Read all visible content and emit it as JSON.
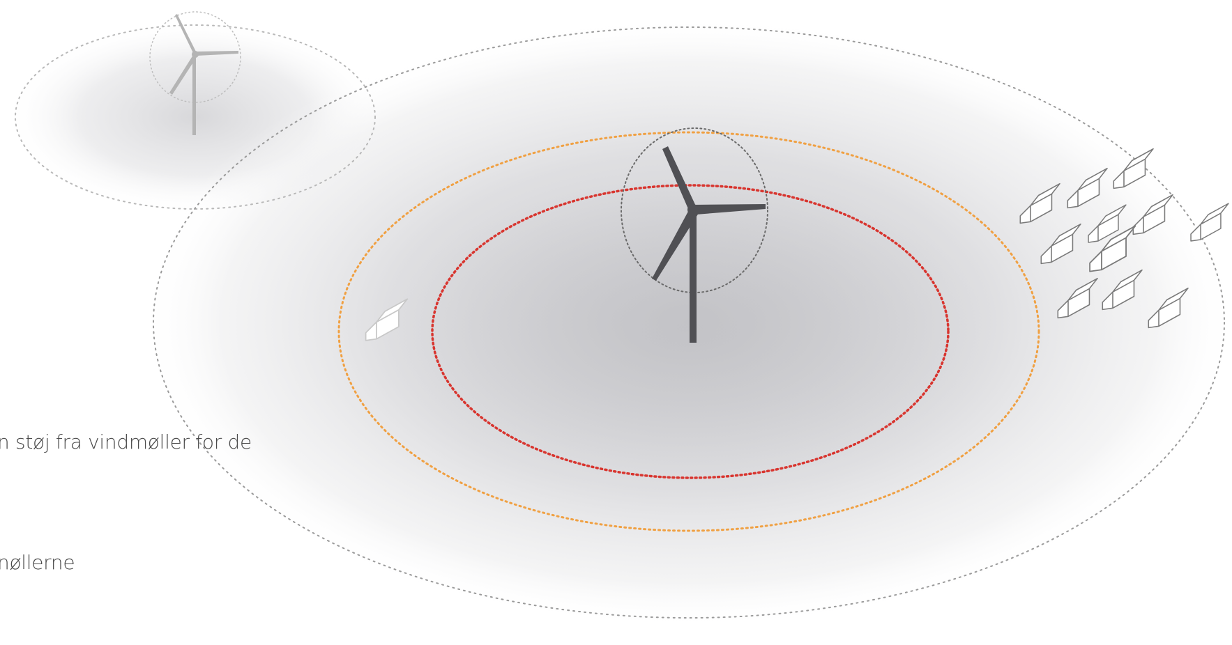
{
  "captions": {
    "line1": "n støj fra vindmøller for de",
    "line2": "nøllerne"
  },
  "colors": {
    "inner_zone_ring": "#d8352f",
    "outer_zone_ring": "#f0a042",
    "boundary_ring": "#9a9a9a",
    "turbine_main": "#505054",
    "turbine_background": "#b4b4b4",
    "house_stroke": "#7a7a7a",
    "house_stroke_light": "#c8c8c8",
    "caption_text": "#4a4a4a"
  },
  "icons": {
    "main_turbine": "wind-turbine-icon",
    "background_turbine": "wind-turbine-icon",
    "house": "house-icon"
  }
}
